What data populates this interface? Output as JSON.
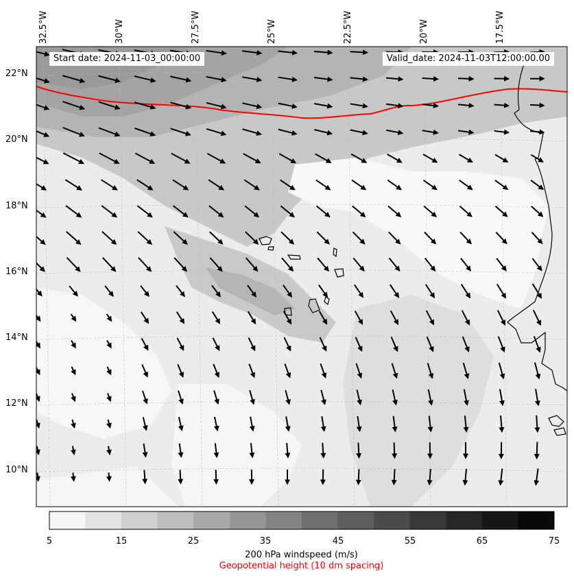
{
  "map": {
    "lon_labels": [
      "32.5°W",
      "30°W",
      "27.5°W",
      "25°W",
      "22.5°W",
      "20°W",
      "17.5°W"
    ],
    "lat_labels": [
      "22°N",
      "20°N",
      "18°N",
      "16°N",
      "14°N",
      "12°N",
      "10°N"
    ],
    "start_date": "Start date: 2024-11-03_00:00:00",
    "valid_date": "Valid_date: 2024-11-03T12:00:00.00",
    "contour_color": "#ff0000",
    "coastline_color": "#000000",
    "vector_color": "#000000"
  },
  "colorbar": {
    "ticks": [
      "5",
      "15",
      "25",
      "35",
      "45",
      "55",
      "65",
      "75"
    ],
    "levels": [
      5,
      10,
      15,
      20,
      25,
      30,
      35,
      40,
      45,
      50,
      55,
      60,
      65,
      70,
      75
    ],
    "colors": [
      "#f5f5f5",
      "#e3e3e3",
      "#d0d0d0",
      "#bdbdbd",
      "#a8a8a8",
      "#969696",
      "#838383",
      "#707070",
      "#5e5e5e",
      "#4b4b4b",
      "#393939",
      "#262626",
      "#171717",
      "#080808"
    ],
    "label": "200 hPa windspeed (m/s)",
    "sublabel": "Geopotential height (10 dm spacing)"
  }
}
